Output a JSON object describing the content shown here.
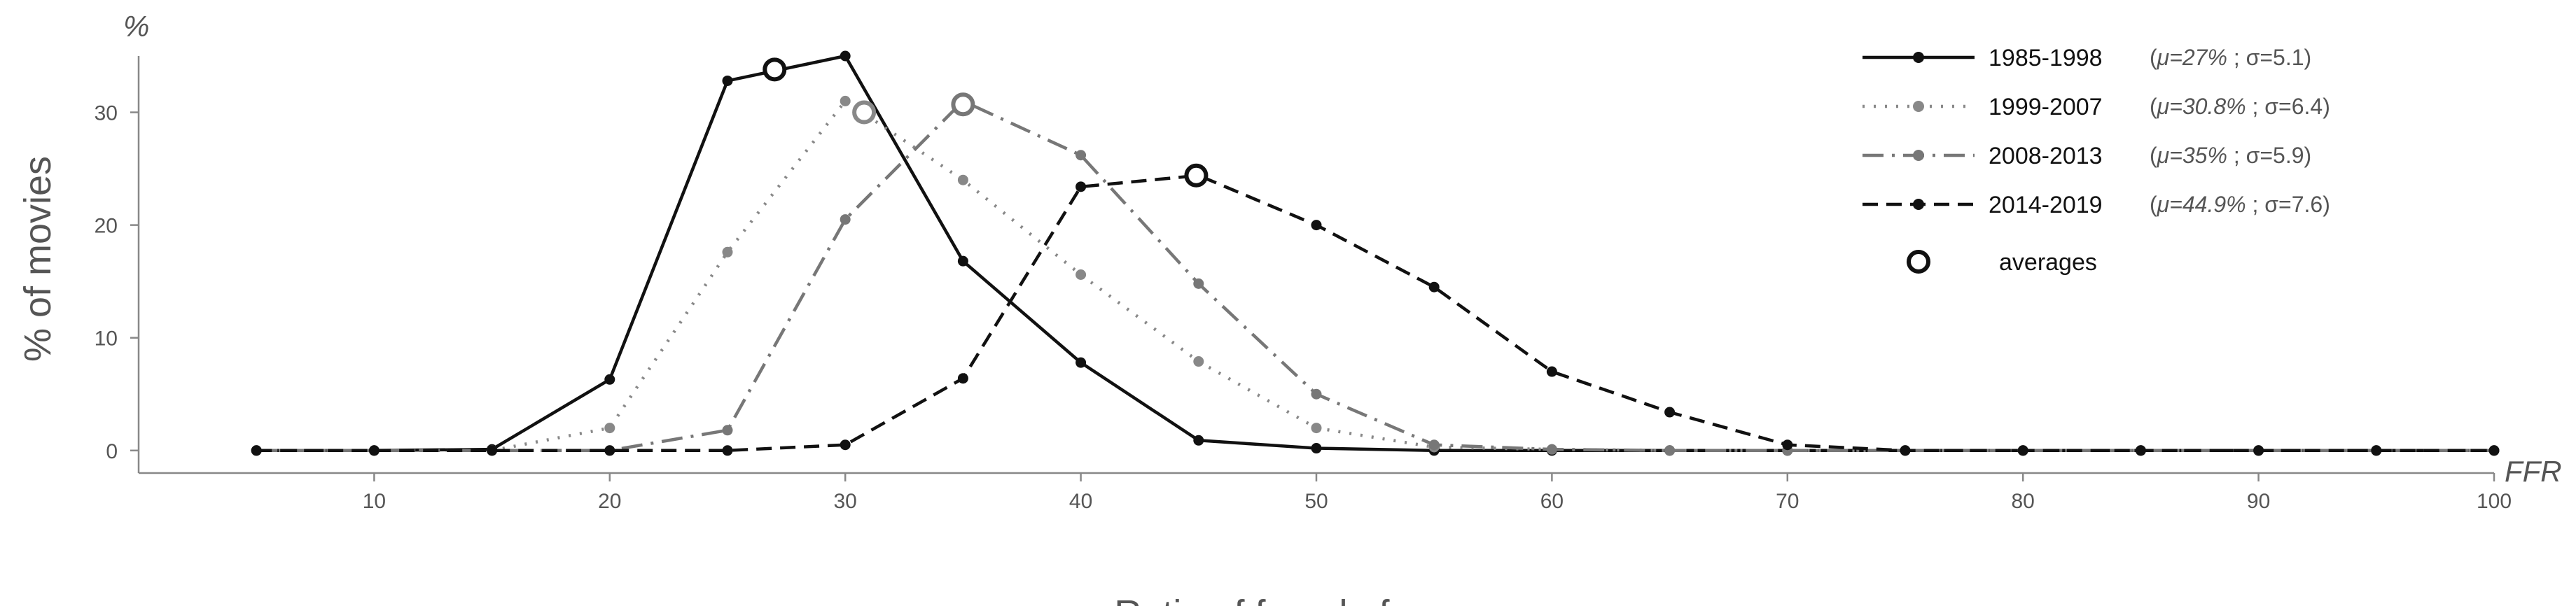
{
  "chart_data": {
    "type": "line",
    "xlabel": "Ratio of female faces",
    "ylabel": "% of movies",
    "x_unit_label": "FFR",
    "y_unit_label": "%",
    "xlim": [
      0,
      100
    ],
    "ylim": [
      -2,
      35
    ],
    "x_ticks": [
      10,
      20,
      30,
      40,
      50,
      60,
      70,
      80,
      90,
      100
    ],
    "y_ticks": [
      0,
      10,
      20,
      30
    ],
    "grid": false,
    "legend_position": "top-right",
    "x": [
      5,
      10,
      15,
      20,
      25,
      30,
      35,
      40,
      45,
      50,
      55,
      60,
      65,
      70,
      75,
      80,
      85,
      90,
      95,
      100
    ],
    "series": [
      {
        "name": "1985-1998",
        "mu": "μ=27%",
        "sigma": "σ=5.1",
        "color": "#111111",
        "dash": "solid",
        "values": [
          0,
          0,
          0.1,
          6.3,
          32.8,
          35.0,
          16.8,
          7.8,
          0.9,
          0.2,
          0,
          0,
          0,
          0,
          0,
          0,
          0,
          0,
          0,
          0
        ],
        "average": [
          27.0,
          33.8
        ]
      },
      {
        "name": "1999-2007",
        "mu": "μ=30.8%",
        "sigma": "σ=6.4",
        "color": "#888888",
        "dash": "dotted",
        "values": [
          0,
          0,
          0,
          2.0,
          17.6,
          31.0,
          24.0,
          15.6,
          7.9,
          2.0,
          0.3,
          0.1,
          0,
          0,
          0,
          0,
          0,
          0,
          0,
          0
        ],
        "average": [
          30.8,
          30.0
        ]
      },
      {
        "name": "2008-2013",
        "mu": "μ=35%",
        "sigma": "σ=5.9",
        "color": "#777777",
        "dash": "dashdot",
        "values": [
          0,
          0,
          0,
          0,
          1.8,
          20.5,
          31.0,
          26.2,
          14.8,
          5.0,
          0.5,
          0.1,
          0,
          0,
          0,
          0,
          0,
          0,
          0,
          0
        ],
        "average": [
          35.0,
          30.7
        ]
      },
      {
        "name": "2014-2019",
        "mu": "μ=44.9%",
        "sigma": "σ=7.6",
        "color": "#111111",
        "dash": "dashed",
        "values": [
          0,
          0,
          0,
          0,
          0,
          0.5,
          6.4,
          23.4,
          24.4,
          20.0,
          14.5,
          7.0,
          3.4,
          0.5,
          0,
          0,
          0,
          0,
          0,
          0
        ],
        "average": [
          44.9,
          24.4
        ]
      }
    ],
    "averages_label": "averages"
  }
}
